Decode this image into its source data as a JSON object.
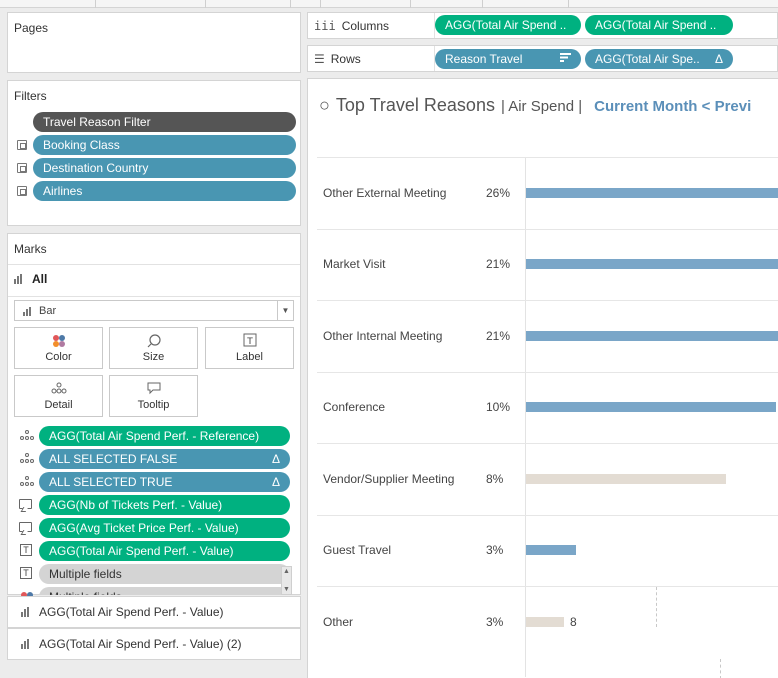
{
  "panels": {
    "pages": {
      "title": "Pages"
    },
    "filters": {
      "title": "Filters",
      "items": [
        {
          "label": "Travel Reason Filter"
        },
        {
          "label": "Booking Class"
        },
        {
          "label": "Destination Country"
        },
        {
          "label": "Airlines"
        }
      ]
    },
    "marks": {
      "title": "Marks",
      "all_label": "All",
      "mark_type": "Bar",
      "buttons": {
        "color": "Color",
        "size": "Size",
        "label": "Label",
        "detail": "Detail",
        "tooltip": "Tooltip"
      },
      "fields": [
        {
          "label": "AGG(Total Air Spend Perf. - Reference)",
          "role": "detail"
        },
        {
          "label": "ALL SELECTED FALSE",
          "role": "detail",
          "delta": "Δ"
        },
        {
          "label": "ALL SELECTED TRUE",
          "role": "detail",
          "delta": "Δ"
        },
        {
          "label": "AGG(Nb of Tickets Perf. -  Value)",
          "role": "tooltip"
        },
        {
          "label": "AGG(Avg Ticket Price Perf. -  Value)",
          "role": "tooltip"
        },
        {
          "label": "AGG(Total Air Spend Perf. -  Value)",
          "role": "label"
        },
        {
          "label": "Multiple fields",
          "role": "label"
        },
        {
          "label": "Multiple fields",
          "role": "color"
        }
      ],
      "cards": [
        {
          "label": "AGG(Total Air Spend Perf. -  Value)"
        },
        {
          "label": "AGG(Total Air Spend Perf. -  Value) (2)"
        }
      ]
    }
  },
  "shelves": {
    "columns": {
      "label": "Columns",
      "pills": [
        {
          "label": "AGG(Total Air Spend .."
        },
        {
          "label": "AGG(Total Air Spend .."
        }
      ]
    },
    "rows": {
      "label": "Rows",
      "pills": [
        {
          "label": "Reason Travel",
          "sort_icon": "⩸"
        },
        {
          "label": "AGG(Total Air Spe..",
          "delta": "Δ"
        }
      ]
    }
  },
  "view": {
    "title_icon": "○",
    "title": "Top Travel Reasons",
    "subtitle": "| Air Spend |",
    "link": "Current Month < Previ",
    "rows": [
      {
        "label": "Other External Meeting",
        "pct": "26%"
      },
      {
        "label": "Market Visit",
        "pct": "21%"
      },
      {
        "label": "Other Internal Meeting",
        "pct": "21%"
      },
      {
        "label": "Conference",
        "pct": "10%"
      },
      {
        "label": "Vendor/Supplier Meeting",
        "pct": "8%"
      },
      {
        "label": "Guest Travel",
        "pct": "3%"
      },
      {
        "label": "Other",
        "pct": "3%",
        "bar_label": "8"
      }
    ]
  },
  "colors": {
    "green_pill": "#00b180",
    "blue_pill": "#4996b2",
    "bar_blue": "#7aa6c8",
    "bar_gray": "#e3dcd3",
    "link": "#5b8fb9"
  },
  "chart_data": {
    "type": "bar",
    "categories": [
      "Other External Meeting",
      "Market Visit",
      "Other Internal Meeting",
      "Conference",
      "Vendor/Supplier Meeting",
      "Guest Travel",
      "Other"
    ],
    "values": [
      26,
      21,
      21,
      10,
      8,
      3,
      3
    ],
    "value_labels": [
      "26%",
      "21%",
      "21%",
      "10%",
      "8%",
      "3%",
      "3%"
    ],
    "title": "Top Travel Reasons",
    "bar_colors": [
      "#7aa6c8",
      "#7aa6c8",
      "#7aa6c8",
      "#7aa6c8",
      "#e3dcd3",
      "#7aa6c8",
      "#e3dcd3"
    ],
    "orientation": "horizontal"
  }
}
